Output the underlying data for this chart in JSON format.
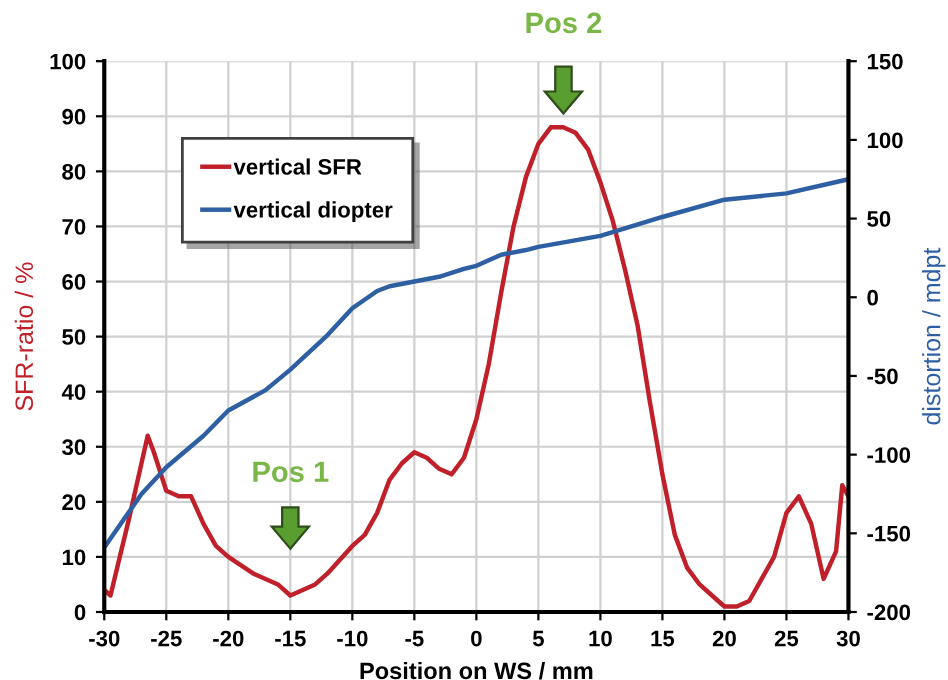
{
  "chart_data": {
    "type": "line",
    "xlabel": "Position on WS / mm",
    "ylabel": "SFR-ratio / %",
    "y2label": "distortion / mdpt",
    "xlim": [
      -30,
      30
    ],
    "xticks": [
      -30,
      -25,
      -20,
      -15,
      -10,
      -5,
      0,
      5,
      10,
      15,
      20,
      25,
      30
    ],
    "ylim": [
      0,
      100
    ],
    "yticks": [
      0,
      10,
      20,
      30,
      40,
      50,
      60,
      70,
      80,
      90,
      100
    ],
    "y2lim": [
      -200,
      150
    ],
    "y2ticks": [
      -200,
      -150,
      -100,
      -50,
      0,
      50,
      100,
      150
    ],
    "grid": true,
    "legend": "top left",
    "marker": "none",
    "line_style": "solid",
    "annotations": [
      "Pos 1",
      "Pos 2"
    ],
    "series": [
      {
        "name": "vertical SFR",
        "color": "#c0202a",
        "x": [
          -30,
          -29.5,
          -28,
          -27,
          -26.5,
          -26,
          -25,
          -24,
          -23,
          -22,
          -21,
          -20,
          -18,
          -16,
          -15,
          -14,
          -13,
          -12,
          -10,
          -9,
          -8,
          -7,
          -6,
          -5,
          -4,
          -3,
          -2,
          -1,
          0,
          1,
          2,
          3,
          4,
          5,
          6,
          7,
          8,
          9,
          10,
          11,
          12,
          13,
          14,
          15,
          16,
          17,
          18,
          19,
          20,
          21,
          22,
          23,
          24,
          25,
          26,
          27,
          28,
          29,
          29.5,
          30
        ],
        "values": [
          4,
          3,
          17,
          27,
          32,
          29,
          22,
          21,
          21,
          16,
          12,
          10,
          7,
          5,
          3,
          4,
          5,
          7,
          12,
          14,
          18,
          24,
          27,
          29,
          28,
          26,
          25,
          28,
          35,
          45,
          58,
          70,
          79,
          85,
          88,
          88,
          87,
          84,
          78,
          71,
          62,
          52,
          38,
          25,
          14,
          8,
          5,
          3,
          1,
          1,
          2,
          6,
          10,
          18,
          21,
          16,
          6,
          11,
          23,
          21
        ]
      },
      {
        "name": "vertical diopter",
        "color": "#2e5fa3",
        "axis": "y2",
        "x": [
          -30,
          -27,
          -25,
          -22,
          -20,
          -17,
          -15,
          -12,
          -10,
          -8,
          -7,
          -5,
          -3,
          -1,
          0,
          2,
          4,
          5,
          10,
          15,
          20,
          25,
          30
        ],
        "values": [
          -159,
          -125,
          -108,
          -88,
          -72,
          -59,
          -46,
          -24,
          -7,
          4,
          7,
          10,
          13,
          18,
          20,
          27,
          30,
          32,
          39,
          51,
          62,
          66,
          75
        ]
      }
    ]
  }
}
